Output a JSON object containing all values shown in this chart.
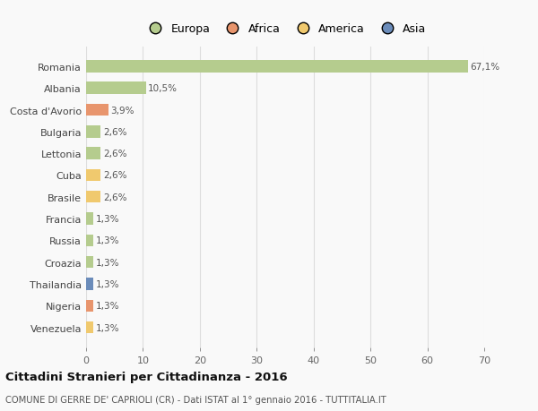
{
  "countries": [
    "Romania",
    "Albania",
    "Costa d'Avorio",
    "Bulgaria",
    "Lettonia",
    "Cuba",
    "Brasile",
    "Francia",
    "Russia",
    "Croazia",
    "Thailandia",
    "Nigeria",
    "Venezuela"
  ],
  "values": [
    67.1,
    10.5,
    3.9,
    2.6,
    2.6,
    2.6,
    2.6,
    1.3,
    1.3,
    1.3,
    1.3,
    1.3,
    1.3
  ],
  "labels": [
    "67,1%",
    "10,5%",
    "3,9%",
    "2,6%",
    "2,6%",
    "2,6%",
    "2,6%",
    "1,3%",
    "1,3%",
    "1,3%",
    "1,3%",
    "1,3%",
    "1,3%"
  ],
  "colors": [
    "#b5cc8e",
    "#b5cc8e",
    "#e8956d",
    "#b5cc8e",
    "#b5cc8e",
    "#f0c96e",
    "#f0c96e",
    "#b5cc8e",
    "#b5cc8e",
    "#b5cc8e",
    "#6b8cba",
    "#e8956d",
    "#f0c96e"
  ],
  "legend_labels": [
    "Europa",
    "Africa",
    "America",
    "Asia"
  ],
  "legend_colors": [
    "#b5cc8e",
    "#e8956d",
    "#f0c96e",
    "#6b8cba"
  ],
  "title": "Cittadini Stranieri per Cittadinanza - 2016",
  "subtitle": "COMUNE DI GERRE DE' CAPRIOLI (CR) - Dati ISTAT al 1° gennaio 2016 - TUTTITALIA.IT",
  "xlim": [
    0,
    70
  ],
  "xticks": [
    0,
    10,
    20,
    30,
    40,
    50,
    60,
    70
  ],
  "background_color": "#f9f9f9",
  "grid_color": "#dddddd",
  "bar_height": 0.55
}
